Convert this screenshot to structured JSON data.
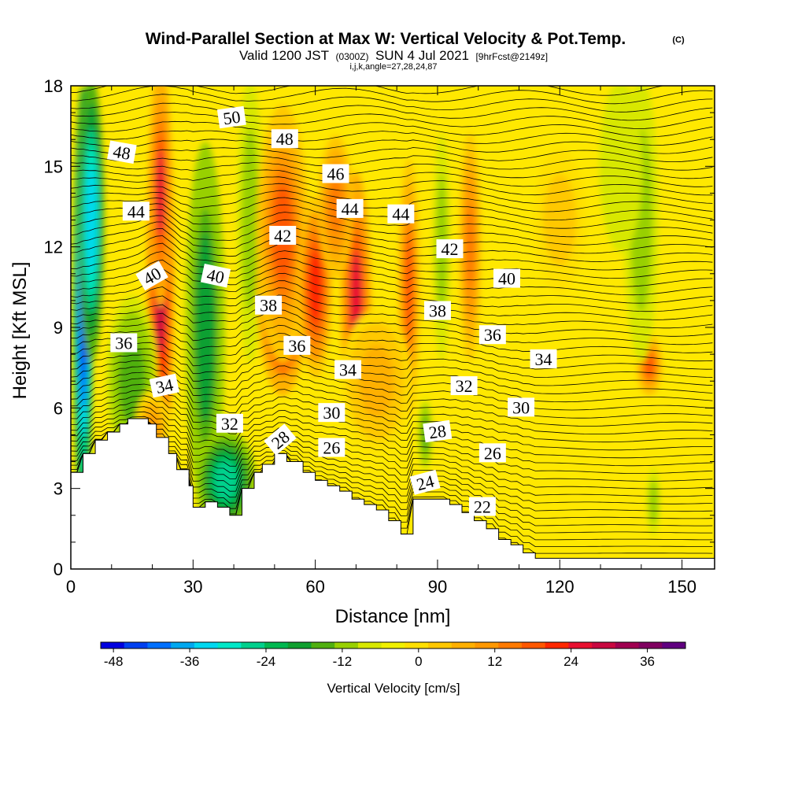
{
  "title_main": "Wind-Parallel Section at Max W: Vertical Velocity & Pot.Temp.",
  "copyright": "(C)",
  "subtitle": {
    "pre": "Valid 1200 JST",
    "utc": "(0300Z)",
    "date": "SUN 4 Jul 2021",
    "fcst": "[9hrFcst@2149z]"
  },
  "indices": "i,j,k,angle=27,28,24,87",
  "chart_data": {
    "type": "contour_cross_section",
    "xlabel": "Distance [nm]",
    "ylabel": "Height [Kft MSL]",
    "xlim": [
      0,
      158
    ],
    "ylim": [
      0,
      18
    ],
    "xticks": [
      "0",
      "30",
      "60",
      "90",
      "120",
      "150"
    ],
    "yticks": [
      "0",
      "3",
      "6",
      "9",
      "12",
      "15",
      "18"
    ],
    "colorbar": {
      "label": "Vertical Velocity [cm/s]",
      "min": -50,
      "max": 42,
      "step": 4,
      "tick_labels": [
        "-48",
        "-36",
        "-24",
        "-12",
        "0",
        "12",
        "24",
        "36"
      ],
      "colors": [
        "#0000e0",
        "#0040f0",
        "#0070ff",
        "#00a8f0",
        "#00d8f0",
        "#00e8c8",
        "#00d08c",
        "#00b850",
        "#10a030",
        "#50b010",
        "#98d000",
        "#d8e800",
        "#f0f000",
        "#ffe000",
        "#ffc800",
        "#ffb000",
        "#ff9800",
        "#ff7a00",
        "#ff5800",
        "#ff2800",
        "#e81030",
        "#c80840",
        "#a00050",
        "#800060",
        "#600080"
      ]
    },
    "terrain": [
      [
        0,
        3.6
      ],
      [
        3,
        3.6
      ],
      [
        3,
        4.3
      ],
      [
        6,
        4.3
      ],
      [
        6,
        4.8
      ],
      [
        9,
        4.8
      ],
      [
        9,
        5.1
      ],
      [
        12,
        5.1
      ],
      [
        12,
        5.4
      ],
      [
        14,
        5.4
      ],
      [
        14,
        5.6
      ],
      [
        19,
        5.6
      ],
      [
        19,
        5.4
      ],
      [
        21,
        5.4
      ],
      [
        21,
        4.9
      ],
      [
        24,
        4.9
      ],
      [
        24,
        4.3
      ],
      [
        26,
        4.3
      ],
      [
        26,
        3.7
      ],
      [
        29,
        3.7
      ],
      [
        29,
        3.1
      ],
      [
        30,
        3.1
      ],
      [
        30,
        2.3
      ],
      [
        33,
        2.3
      ],
      [
        33,
        2.5
      ],
      [
        36,
        2.5
      ],
      [
        36,
        2.3
      ],
      [
        39,
        2.3
      ],
      [
        39,
        2.0
      ],
      [
        42,
        2.0
      ],
      [
        42,
        3.0
      ],
      [
        45,
        3.0
      ],
      [
        45,
        3.6
      ],
      [
        47,
        3.6
      ],
      [
        47,
        3.9
      ],
      [
        50,
        3.9
      ],
      [
        50,
        4.3
      ],
      [
        53,
        4.3
      ],
      [
        53,
        4.0
      ],
      [
        57,
        4.0
      ],
      [
        57,
        3.6
      ],
      [
        60,
        3.6
      ],
      [
        60,
        3.3
      ],
      [
        63,
        3.3
      ],
      [
        63,
        3.1
      ],
      [
        66,
        3.1
      ],
      [
        66,
        2.9
      ],
      [
        69,
        2.9
      ],
      [
        69,
        2.6
      ],
      [
        72,
        2.6
      ],
      [
        72,
        2.4
      ],
      [
        75,
        2.4
      ],
      [
        75,
        2.2
      ],
      [
        78,
        2.2
      ],
      [
        78,
        1.8
      ],
      [
        81,
        1.8
      ],
      [
        81,
        1.3
      ],
      [
        84,
        1.3
      ],
      [
        84,
        2.6
      ],
      [
        93,
        2.6
      ],
      [
        93,
        2.4
      ],
      [
        96,
        2.4
      ],
      [
        96,
        2.1
      ],
      [
        99,
        2.1
      ],
      [
        99,
        1.8
      ],
      [
        102,
        1.8
      ],
      [
        102,
        1.5
      ],
      [
        105,
        1.5
      ],
      [
        105,
        1.1
      ],
      [
        108,
        1.1
      ],
      [
        108,
        0.9
      ],
      [
        111,
        0.9
      ],
      [
        111,
        0.6
      ],
      [
        114,
        0.6
      ],
      [
        114,
        0.4
      ],
      [
        158,
        0.4
      ]
    ],
    "w_features": [
      {
        "x": 3,
        "y": 10,
        "w": -44,
        "rx": 2.2,
        "ry": 7.5
      },
      {
        "x": 5,
        "y": 13,
        "w": -30,
        "rx": 3,
        "ry": 5
      },
      {
        "x": 22,
        "y": 11,
        "w": 32,
        "rx": 3.2,
        "ry": 7.5
      },
      {
        "x": 22,
        "y": 14,
        "w": 28,
        "rx": 2.5,
        "ry": 4
      },
      {
        "x": 33,
        "y": 9,
        "w": -16,
        "rx": 4.5,
        "ry": 6.5
      },
      {
        "x": 38,
        "y": 3.3,
        "w": -22,
        "rx": 7,
        "ry": 1.8
      },
      {
        "x": 15,
        "y": 7,
        "w": -10,
        "rx": 6,
        "ry": 3
      },
      {
        "x": 44,
        "y": 13,
        "w": -6,
        "rx": 3,
        "ry": 5
      },
      {
        "x": 52,
        "y": 10.5,
        "w": 34,
        "rx": 6,
        "ry": 3.8
      },
      {
        "x": 52,
        "y": 12.5,
        "w": 22,
        "rx": 6,
        "ry": 4.5
      },
      {
        "x": 60,
        "y": 10.5,
        "w": 26,
        "rx": 4,
        "ry": 3.2
      },
      {
        "x": 70,
        "y": 10,
        "w": 28,
        "rx": 3.5,
        "ry": 4.5
      },
      {
        "x": 65,
        "y": 13.5,
        "w": 18,
        "rx": 4,
        "ry": 2.5
      },
      {
        "x": 83,
        "y": 10.5,
        "w": 22,
        "rx": 2.5,
        "ry": 4.5
      },
      {
        "x": 91,
        "y": 12,
        "w": -6,
        "rx": 2,
        "ry": 4
      },
      {
        "x": 87,
        "y": 5,
        "w": -10,
        "rx": 1.7,
        "ry": 1.3
      },
      {
        "x": 98,
        "y": 12,
        "w": 18,
        "rx": 2.5,
        "ry": 4
      },
      {
        "x": 142,
        "y": 7.6,
        "w": 20,
        "rx": 3,
        "ry": 1.1
      },
      {
        "x": 140,
        "y": 13,
        "w": -6,
        "rx": 4,
        "ry": 5
      },
      {
        "x": 135,
        "y": 15,
        "w": -4,
        "rx": 5,
        "ry": 3
      },
      {
        "x": 143,
        "y": 2.5,
        "w": -7,
        "rx": 1.6,
        "ry": 1.2
      },
      {
        "x": 120,
        "y": 13,
        "w": 6,
        "rx": 6,
        "ry": 2.5
      },
      {
        "x": 20,
        "y": 5.2,
        "w": 12,
        "rx": 4,
        "ry": 1.4
      },
      {
        "x": 75,
        "y": 7,
        "w": 10,
        "rx": 8,
        "ry": 2.5
      }
    ],
    "theta_labels": [
      {
        "text": "50",
        "x": 39.5,
        "y": 16.8,
        "angle": -8
      },
      {
        "text": "48",
        "x": 12.5,
        "y": 15.5,
        "angle": 10
      },
      {
        "text": "48",
        "x": 52.5,
        "y": 16.0,
        "angle": 0
      },
      {
        "text": "46",
        "x": 65,
        "y": 14.7,
        "angle": 0
      },
      {
        "text": "44",
        "x": 16,
        "y": 13.3,
        "angle": 0
      },
      {
        "text": "44",
        "x": 68.5,
        "y": 13.4,
        "angle": 0
      },
      {
        "text": "44",
        "x": 81,
        "y": 13.2,
        "angle": 0
      },
      {
        "text": "42",
        "x": 52,
        "y": 12.4,
        "angle": 0
      },
      {
        "text": "42",
        "x": 93,
        "y": 11.9,
        "angle": 0
      },
      {
        "text": "40",
        "x": 20,
        "y": 10.9,
        "angle": -30
      },
      {
        "text": "40",
        "x": 35.5,
        "y": 10.9,
        "angle": 12
      },
      {
        "text": "40",
        "x": 107,
        "y": 10.8,
        "angle": 0
      },
      {
        "text": "38",
        "x": 48.5,
        "y": 9.8,
        "angle": 0
      },
      {
        "text": "38",
        "x": 90,
        "y": 9.6,
        "angle": 0
      },
      {
        "text": "36",
        "x": 13,
        "y": 8.4,
        "angle": 0
      },
      {
        "text": "36",
        "x": 55.5,
        "y": 8.3,
        "angle": 0
      },
      {
        "text": "36",
        "x": 103.5,
        "y": 8.7,
        "angle": 0
      },
      {
        "text": "34",
        "x": 23,
        "y": 6.8,
        "angle": -12
      },
      {
        "text": "34",
        "x": 68,
        "y": 7.4,
        "angle": 0
      },
      {
        "text": "34",
        "x": 116,
        "y": 7.8,
        "angle": 0
      },
      {
        "text": "32",
        "x": 39,
        "y": 5.4,
        "angle": 0
      },
      {
        "text": "32",
        "x": 96.5,
        "y": 6.8,
        "angle": 0
      },
      {
        "text": "30",
        "x": 64,
        "y": 5.8,
        "angle": 0
      },
      {
        "text": "30",
        "x": 110.5,
        "y": 6.0,
        "angle": 0
      },
      {
        "text": "28",
        "x": 51.5,
        "y": 4.8,
        "angle": -40
      },
      {
        "text": "28",
        "x": 90,
        "y": 5.1,
        "angle": -8
      },
      {
        "text": "26",
        "x": 64,
        "y": 4.5,
        "angle": 0
      },
      {
        "text": "26",
        "x": 103.5,
        "y": 4.3,
        "angle": 0
      },
      {
        "text": "24",
        "x": 87,
        "y": 3.2,
        "angle": -15
      },
      {
        "text": "22",
        "x": 101,
        "y": 2.3,
        "angle": 0
      }
    ]
  },
  "colors": {
    "background": "#ffffff",
    "contour": "#000000",
    "label_box": "#ffffff"
  }
}
